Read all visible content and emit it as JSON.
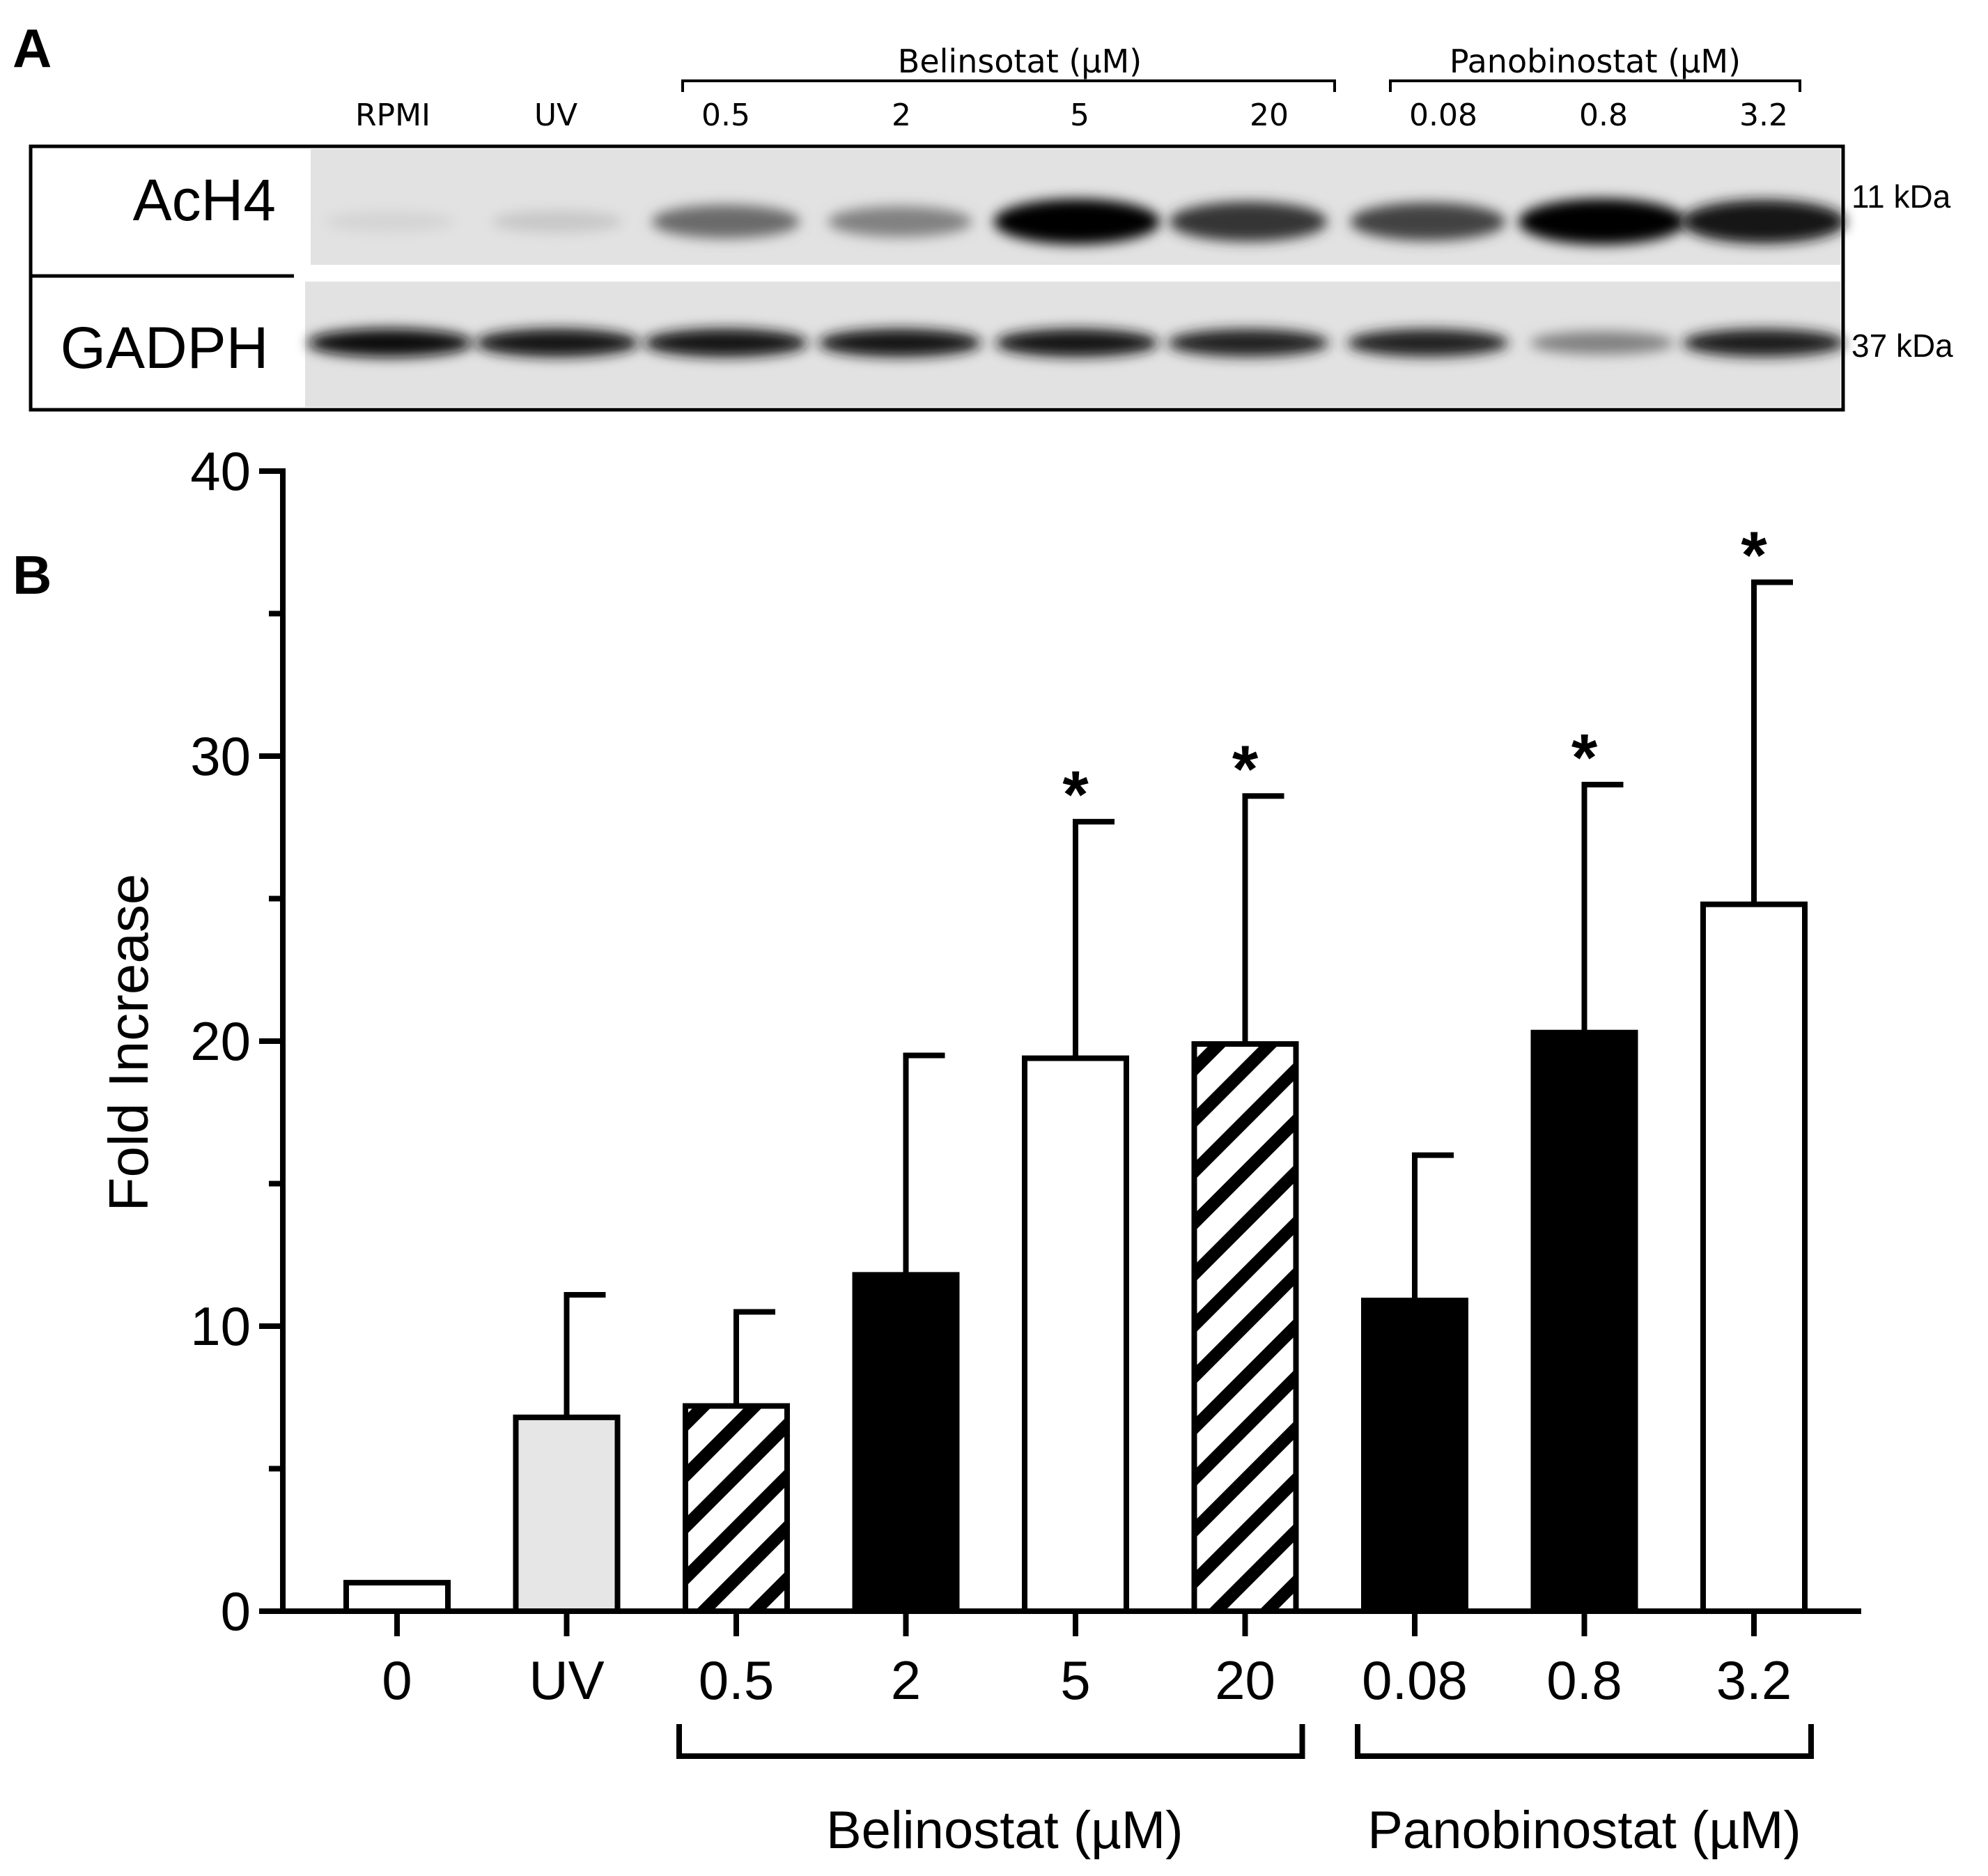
{
  "panels": {
    "a_label": "A",
    "b_label": "B"
  },
  "blot": {
    "lane_labels": [
      "RPMI",
      "UV",
      "0.5",
      "2",
      "5",
      "20",
      "0.08",
      "0.8",
      "3.2"
    ],
    "groups": [
      "Belinsotat (µM)",
      "Panobinostat (µM)"
    ],
    "rows": [
      {
        "label": "AcH4",
        "mw": "11 kDa",
        "intensity": [
          0.1,
          0.15,
          0.55,
          0.45,
          0.98,
          0.78,
          0.72,
          1.0,
          0.92
        ]
      },
      {
        "label": "GADPH",
        "mw": "37 kDa",
        "intensity": [
          0.95,
          0.92,
          0.92,
          0.9,
          0.9,
          0.86,
          0.86,
          0.45,
          0.88
        ]
      }
    ]
  },
  "chart_data": {
    "type": "bar",
    "categories": [
      "0",
      "UV",
      "0.5",
      "2",
      "5",
      "20",
      "0.08",
      "0.8",
      "3.2"
    ],
    "values": [
      1.0,
      6.8,
      7.2,
      11.8,
      19.4,
      19.9,
      10.9,
      20.3,
      24.8
    ],
    "errors": [
      0,
      4.3,
      3.3,
      7.7,
      8.3,
      8.7,
      5.1,
      8.7,
      11.3
    ],
    "significant": [
      false,
      false,
      false,
      false,
      true,
      true,
      false,
      true,
      true
    ],
    "star_symbol": "*",
    "fills": [
      "white",
      "lightgray",
      "hatch",
      "black",
      "white",
      "hatch",
      "black",
      "black",
      "white"
    ],
    "colors": {
      "black": "#000000",
      "white": "#ffffff",
      "lightgray": "#e6e6e6"
    },
    "ylabel": "Fold Increase",
    "xlabel": "",
    "ylim": [
      0,
      40
    ],
    "yticks": [
      "0",
      "10",
      "20",
      "30",
      "40"
    ],
    "groups": [
      {
        "label": "Belinostat (µM)",
        "categories": [
          "0.5",
          "2",
          "5",
          "20"
        ]
      },
      {
        "label": "Panobinostat (µM)",
        "categories": [
          "0.08",
          "0.8",
          "3.2"
        ]
      }
    ],
    "grid": false
  }
}
